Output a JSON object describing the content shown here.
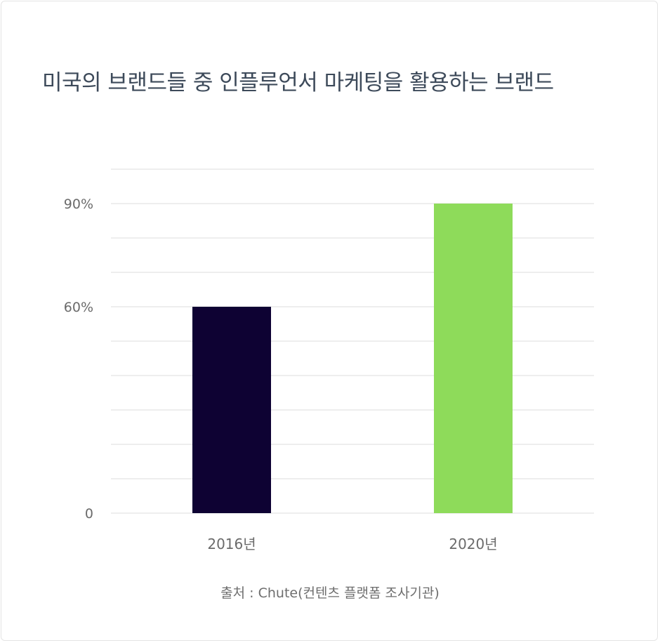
{
  "chart_data": {
    "type": "bar",
    "title": "미국의 브랜드들 중 인플루언서 마케팅을 활용하는 브랜드",
    "categories": [
      "2016년",
      "2020년"
    ],
    "values": [
      60,
      90
    ],
    "ylim": [
      0,
      100
    ],
    "ytick_values": [
      0,
      60,
      90
    ],
    "ytick_labels": [
      "0",
      "60%",
      "90%"
    ],
    "bar_colors": [
      "#0e0233",
      "#8edb5a"
    ],
    "grid": true,
    "legend": "none",
    "source": "출처 : Chute(컨텐츠 플랫폼 조사기관)"
  }
}
